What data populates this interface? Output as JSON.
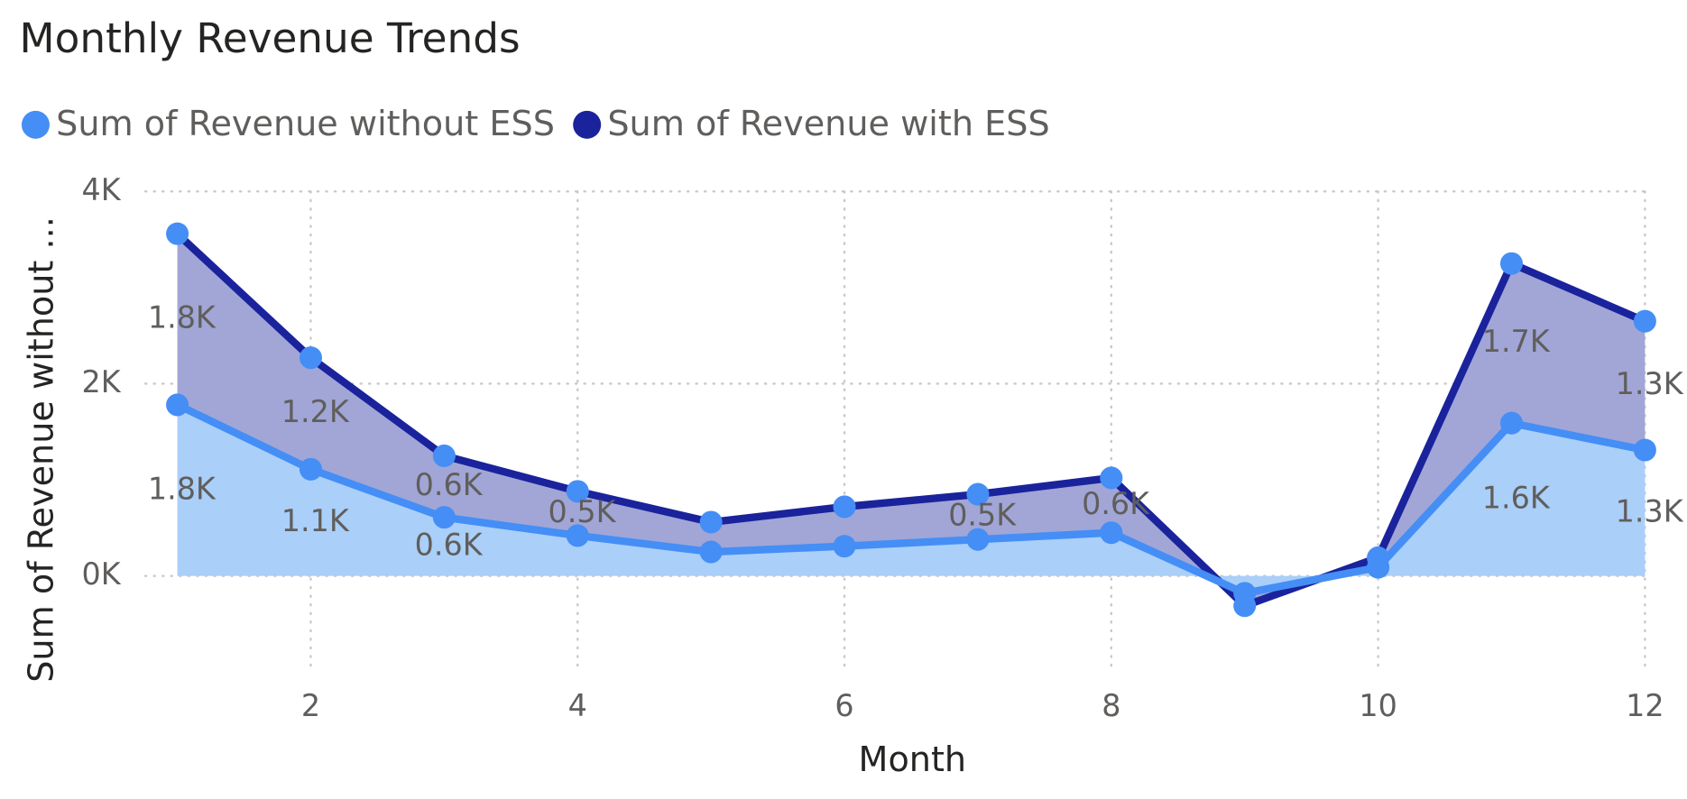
{
  "chart_data": {
    "type": "stacked-area",
    "title": "Monthly Revenue Trends",
    "x_label": "Month",
    "y_label": "Sum of Revenue without ...",
    "x": [
      1,
      2,
      3,
      4,
      5,
      6,
      7,
      8,
      9,
      10,
      11,
      12
    ],
    "series": [
      {
        "name": "Sum of Revenue without ESS",
        "color": "#448ef6",
        "fill": "#aacff8",
        "values": [
          1780,
          1110,
          610,
          420,
          250,
          310,
          380,
          450,
          -180,
          90,
          1590,
          1310
        ],
        "value_labels": [
          "1.8K",
          "1.1K",
          "0.6K",
          null,
          null,
          null,
          null,
          null,
          null,
          null,
          "1.6K",
          "1.3K"
        ]
      },
      {
        "name": "Sum of Revenue with ESS",
        "color": "#1a239c",
        "fill": "#a1a6d6",
        "values": [
          1780,
          1160,
          640,
          460,
          310,
          410,
          470,
          570,
          -130,
          100,
          1660,
          1340
        ],
        "value_labels": [
          "1.8K",
          "1.2K",
          "0.6K",
          "0.5K",
          null,
          null,
          "0.5K",
          "0.6K",
          null,
          null,
          "1.7K",
          "1.3K"
        ]
      }
    ],
    "marker_color": "#448ef6",
    "xlim": [
      0.76,
      12
    ],
    "xticks": [
      2,
      4,
      6,
      8,
      10,
      12
    ],
    "ylim": [
      -1000,
      4000
    ],
    "yticks": [
      {
        "value": 0,
        "label": "0K"
      },
      {
        "value": 2000,
        "label": "2K"
      },
      {
        "value": 4000,
        "label": "4K"
      }
    ],
    "grid": true,
    "legend": "top-left"
  }
}
